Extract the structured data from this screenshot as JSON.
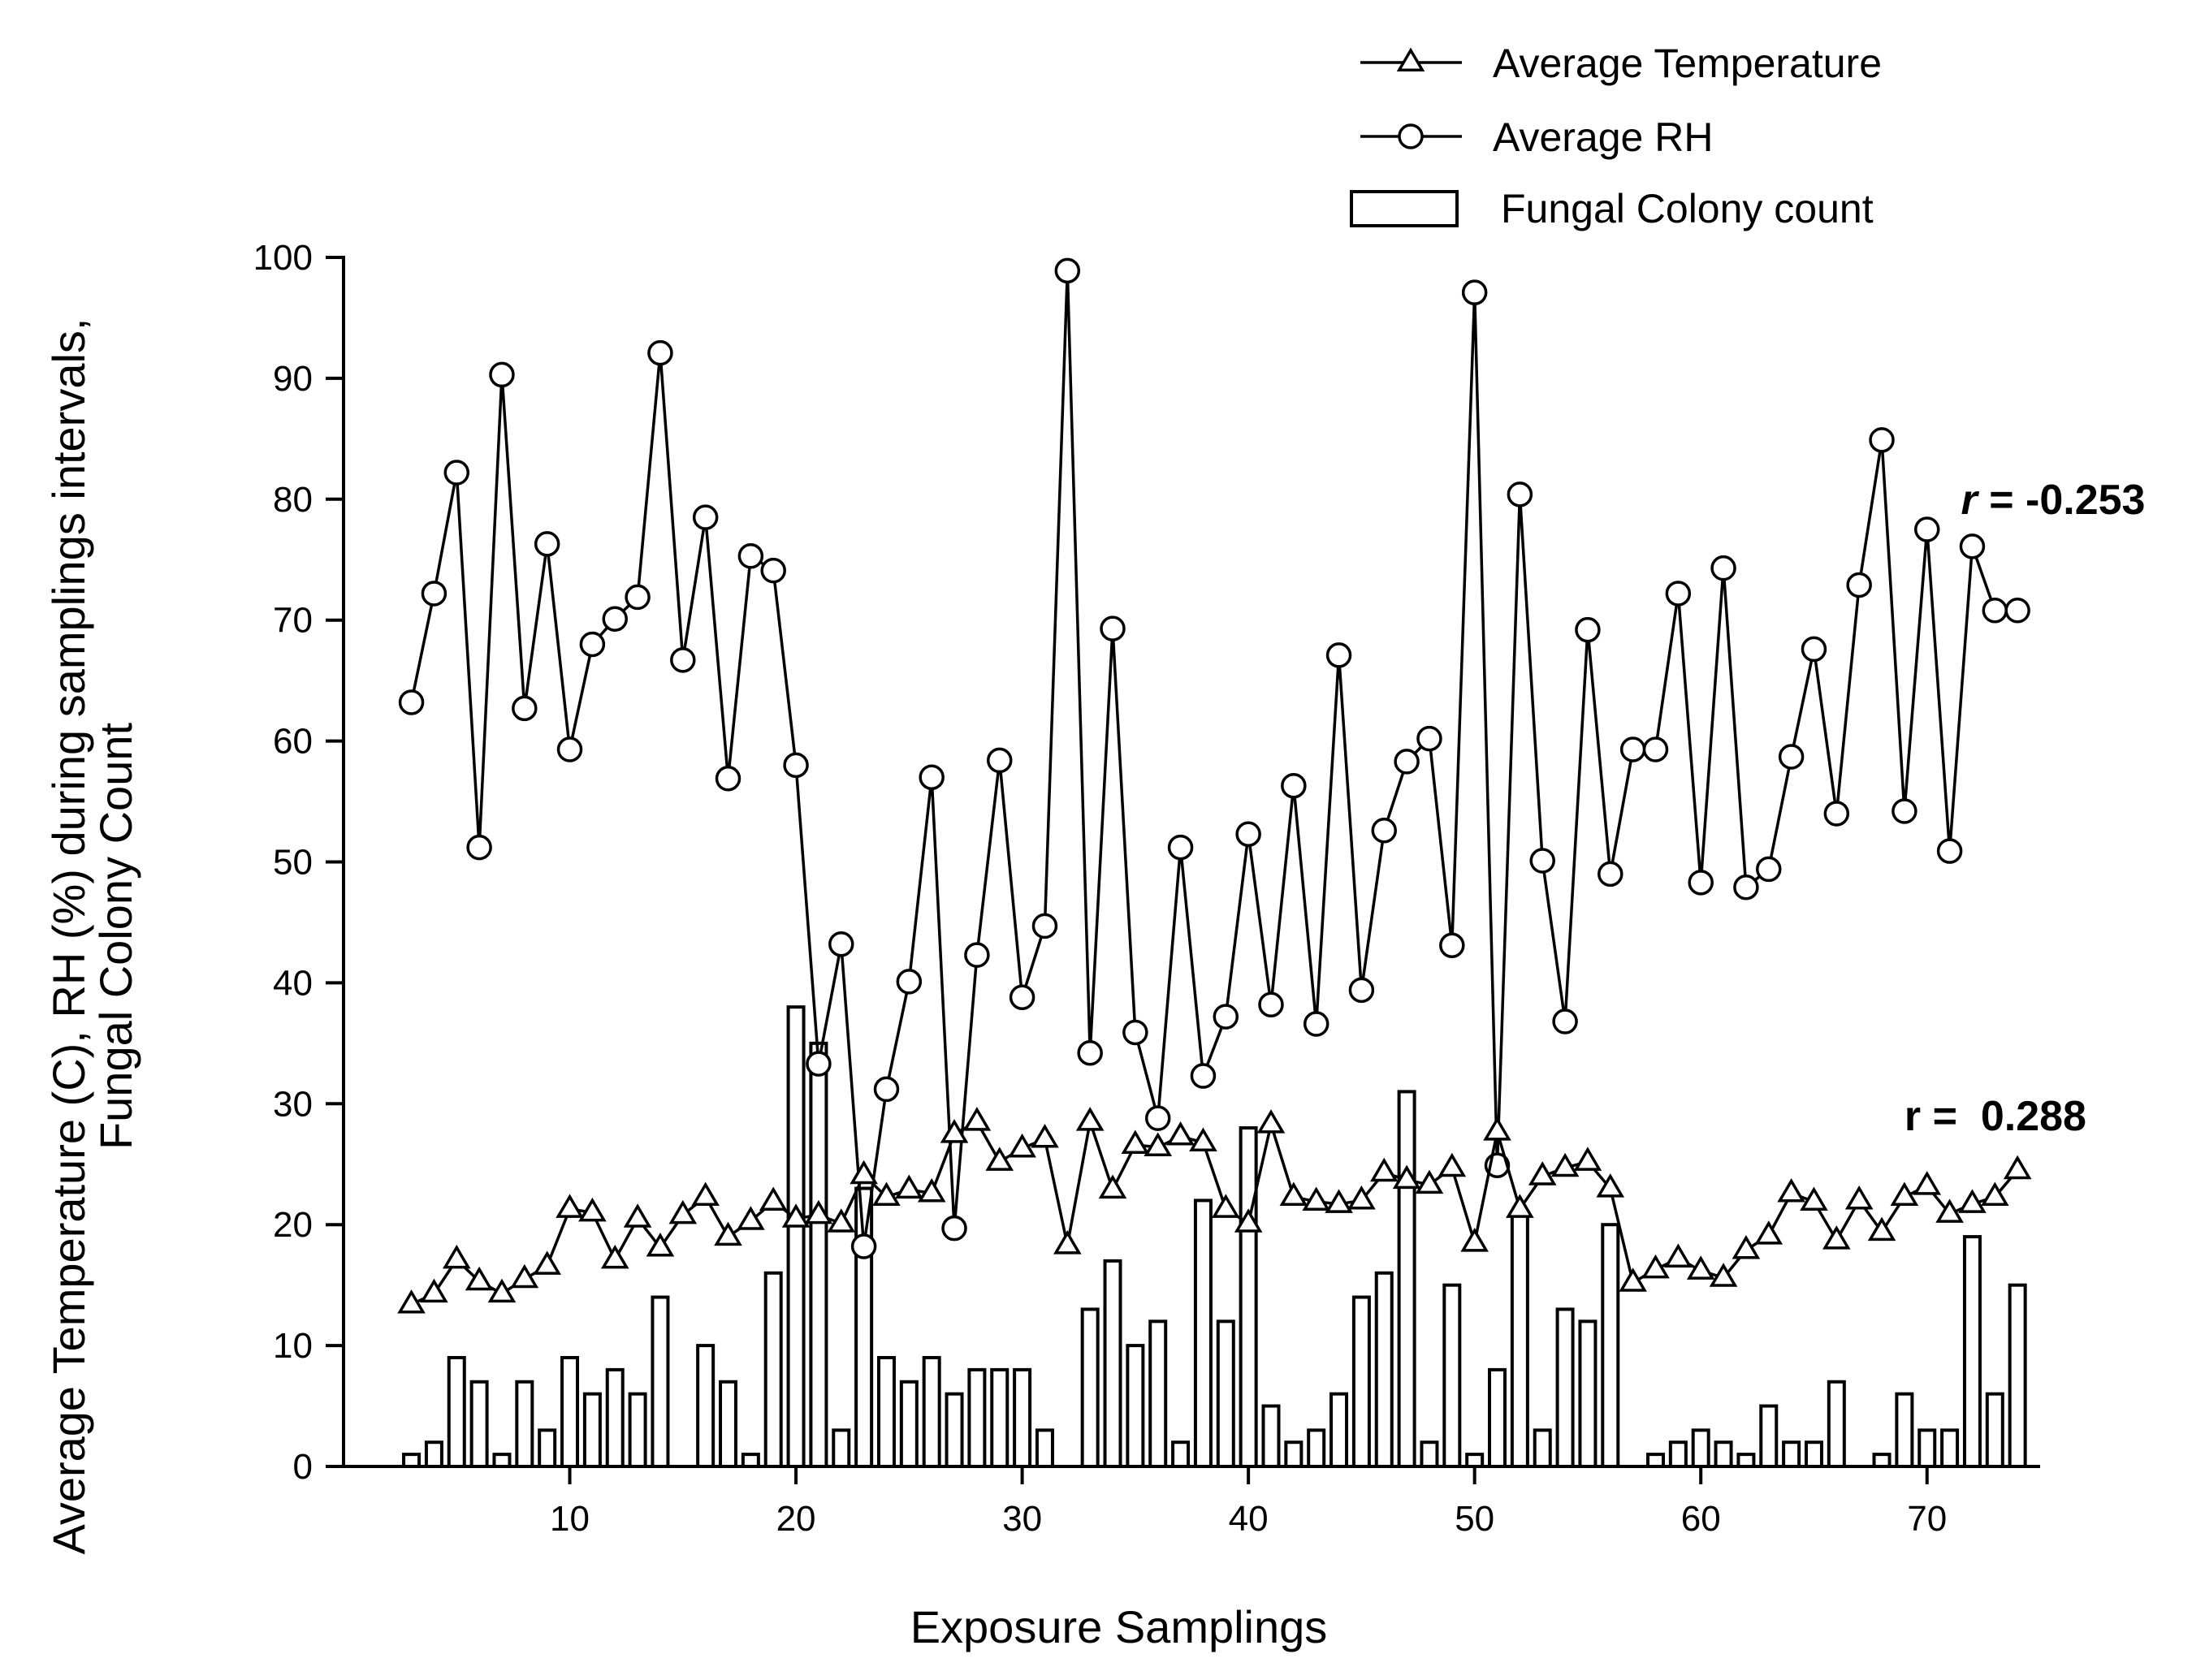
{
  "chart_data": {
    "type": "bar+line",
    "title": "",
    "xlabel": "Exposure Samplings",
    "ylabel_lines": [
      "Average Temperature (C),  RH (%) during samplings intervals,",
      "Fungal Colony Count"
    ],
    "xlim": [
      0,
      75
    ],
    "ylim": [
      0,
      100
    ],
    "x_ticks": [
      10,
      20,
      30,
      40,
      50,
      60,
      70
    ],
    "y_ticks": [
      0,
      10,
      20,
      30,
      40,
      50,
      60,
      70,
      80,
      90,
      100
    ],
    "legend": {
      "placement": "top-right",
      "items": [
        {
          "label": "Average Temperature",
          "marker": "triangle-open"
        },
        {
          "label": "Average RH",
          "marker": "circle-open"
        },
        {
          "label": "Fungal Colony count",
          "marker": "bar-open"
        }
      ]
    },
    "annotations": [
      {
        "r_symbol": "r",
        "text": " = -0.253",
        "italic": true,
        "x": 71.5,
        "y": 80,
        "series": "Average RH"
      },
      {
        "r_symbol": "r",
        "text": " =  0.288",
        "italic": false,
        "x": 69,
        "y": 29,
        "series": "Average Temperature"
      }
    ],
    "series": [
      {
        "name": "Fungal Colony count",
        "type": "bar",
        "x": [
          3,
          4,
          5,
          6,
          7,
          8,
          9,
          10,
          11,
          12,
          13,
          14,
          16,
          17,
          18,
          19,
          20,
          21,
          22,
          23,
          24,
          25,
          26,
          27,
          28,
          29,
          30,
          31,
          33,
          34,
          35,
          36,
          37,
          38,
          39,
          40,
          41,
          42,
          43,
          44,
          45,
          46,
          47,
          48,
          49,
          50,
          51,
          52,
          53,
          54,
          55,
          56,
          58,
          59,
          60,
          61,
          62,
          63,
          64,
          65,
          66,
          68,
          69,
          70,
          71,
          72,
          73,
          74
        ],
        "values": [
          1,
          2,
          9,
          7,
          1,
          7,
          3,
          9,
          6,
          8,
          6,
          14,
          10,
          7,
          1,
          16,
          38,
          35,
          3,
          23,
          9,
          7,
          9,
          6,
          8,
          8,
          8,
          3,
          13,
          17,
          10,
          12,
          2,
          22,
          12,
          28,
          5,
          2,
          3,
          6,
          14,
          16,
          31,
          2,
          15,
          1,
          8,
          21,
          3,
          13,
          12,
          20,
          1,
          2,
          3,
          2,
          1,
          5,
          2,
          2,
          7,
          1,
          6,
          3,
          3,
          19,
          6,
          15
        ]
      },
      {
        "name": "Average RH",
        "type": "line",
        "marker": "circle-open",
        "x": [
          3,
          4,
          5,
          6,
          7,
          8,
          9,
          10,
          11,
          12,
          13,
          14,
          15,
          16,
          17,
          18,
          19,
          20,
          21,
          22,
          23,
          24,
          25,
          26,
          27,
          28,
          29,
          30,
          31,
          32,
          33,
          34,
          35,
          36,
          37,
          38,
          39,
          40,
          41,
          42,
          43,
          44,
          45,
          46,
          47,
          48,
          49,
          50,
          51,
          52,
          53,
          54,
          55,
          56,
          57,
          58,
          59,
          60,
          61,
          62,
          63,
          64,
          65,
          66,
          67,
          68,
          69,
          70,
          71,
          72,
          73,
          74
        ],
        "values": [
          63.2,
          72.2,
          82.2,
          51.2,
          90.3,
          62.7,
          76.3,
          59.3,
          68.0,
          70.1,
          71.9,
          92.1,
          66.7,
          78.5,
          56.9,
          75.3,
          74.1,
          58.0,
          33.3,
          43.2,
          18.2,
          31.2,
          40.1,
          57.0,
          19.7,
          42.3,
          58.4,
          38.8,
          44.7,
          98.9,
          34.2,
          69.3,
          35.9,
          28.8,
          51.2,
          32.3,
          37.2,
          52.3,
          38.2,
          56.3,
          36.6,
          67.1,
          39.4,
          52.6,
          58.3,
          60.2,
          43.1,
          97.1,
          24.9,
          80.4,
          50.1,
          36.8,
          69.2,
          49.0,
          59.3,
          59.3,
          72.2,
          48.3,
          74.3,
          47.9,
          49.4,
          58.7,
          67.6,
          54.0,
          72.9,
          84.9,
          54.2,
          77.5,
          50.9,
          76.1,
          70.8,
          70.8
        ]
      },
      {
        "name": "Average Temperature",
        "type": "line",
        "marker": "triangle-open",
        "x": [
          3,
          4,
          5,
          6,
          7,
          8,
          9,
          10,
          11,
          12,
          13,
          14,
          15,
          16,
          17,
          18,
          19,
          20,
          21,
          22,
          23,
          24,
          25,
          26,
          27,
          28,
          29,
          30,
          31,
          32,
          33,
          34,
          35,
          36,
          37,
          38,
          39,
          40,
          41,
          42,
          43,
          44,
          45,
          46,
          47,
          48,
          49,
          50,
          51,
          52,
          53,
          54,
          55,
          56,
          57,
          58,
          59,
          60,
          61,
          62,
          63,
          64,
          65,
          66,
          67,
          68,
          69,
          70,
          71,
          72,
          73,
          74
        ],
        "values": [
          13.4,
          14.3,
          17.1,
          15.3,
          14.3,
          15.5,
          16.6,
          21.3,
          21.0,
          17.1,
          20.5,
          18.1,
          20.8,
          22.3,
          19.0,
          20.3,
          21.9,
          20.5,
          20.8,
          20.1,
          24.1,
          22.3,
          22.9,
          22.6,
          27.5,
          28.5,
          25.2,
          26.3,
          27.1,
          18.3,
          28.5,
          22.9,
          26.6,
          26.4,
          27.3,
          26.8,
          21.3,
          20.1,
          28.3,
          22.3,
          21.9,
          21.7,
          22.0,
          24.3,
          23.7,
          23.3,
          24.7,
          18.5,
          27.7,
          21.3,
          24.0,
          24.7,
          25.2,
          23.0,
          15.2,
          16.3,
          17.2,
          16.2,
          15.6,
          17.9,
          19.1,
          22.6,
          21.9,
          18.7,
          22.0,
          19.4,
          22.3,
          23.2,
          20.9,
          21.7,
          22.3,
          24.5
        ]
      }
    ]
  }
}
